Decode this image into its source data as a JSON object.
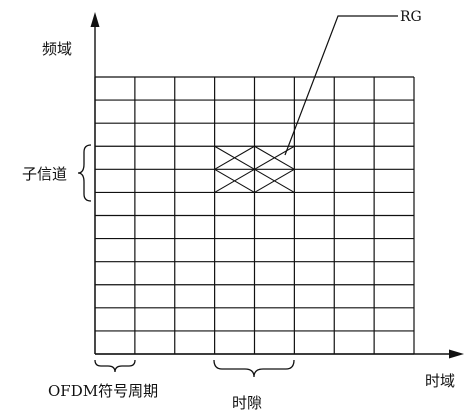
{
  "labels": {
    "frequency_axis": "频域",
    "time_axis": "时域",
    "subchannel": "子信道",
    "ofdm_symbol_period": "OFDM符号周期",
    "time_slot": "时隙",
    "rg": "RG"
  },
  "grid": {
    "columns": 8,
    "rows": 12,
    "highlighted_resource_group": {
      "columns": [
        3,
        4
      ],
      "rows": [
        3,
        4
      ]
    }
  }
}
